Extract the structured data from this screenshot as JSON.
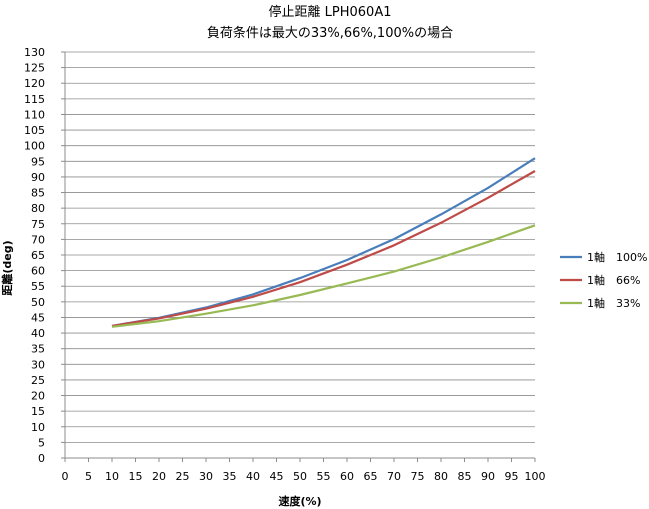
{
  "chart_data": {
    "type": "line",
    "title_lines": [
      "停止距離 LPH060A1",
      "負荷条件は最大の33%,66%,100%の場合"
    ],
    "xlabel": "速度(%)",
    "ylabel": "距離(deg)",
    "xlim": [
      0,
      100
    ],
    "ylim": [
      0,
      130
    ],
    "xticks": [
      0,
      5,
      10,
      15,
      20,
      25,
      30,
      35,
      40,
      45,
      50,
      55,
      60,
      65,
      70,
      75,
      80,
      85,
      90,
      95,
      100
    ],
    "yticks": [
      0,
      5,
      10,
      15,
      20,
      25,
      30,
      35,
      40,
      45,
      50,
      55,
      60,
      65,
      70,
      75,
      80,
      85,
      90,
      95,
      100,
      105,
      110,
      115,
      120,
      125,
      130
    ],
    "grid": true,
    "legend_position": "right",
    "x": [
      10,
      20,
      30,
      40,
      50,
      60,
      70,
      80,
      90,
      100
    ],
    "series": [
      {
        "name": "1軸　100%",
        "color": "#4a7ebb",
        "values": [
          42.3,
          44.9,
          48.2,
          52.4,
          57.6,
          63.4,
          70.1,
          78.0,
          86.5,
          96.0
        ]
      },
      {
        "name": "1軸　66%",
        "color": "#be4b48",
        "values": [
          42.3,
          44.7,
          47.8,
          51.6,
          56.3,
          61.9,
          68.1,
          75.3,
          83.3,
          91.9
        ]
      },
      {
        "name": "1軸　33%",
        "color": "#98b954",
        "values": [
          42.0,
          43.8,
          46.2,
          48.9,
          52.2,
          55.9,
          59.7,
          64.2,
          69.2,
          74.5
        ]
      }
    ]
  }
}
